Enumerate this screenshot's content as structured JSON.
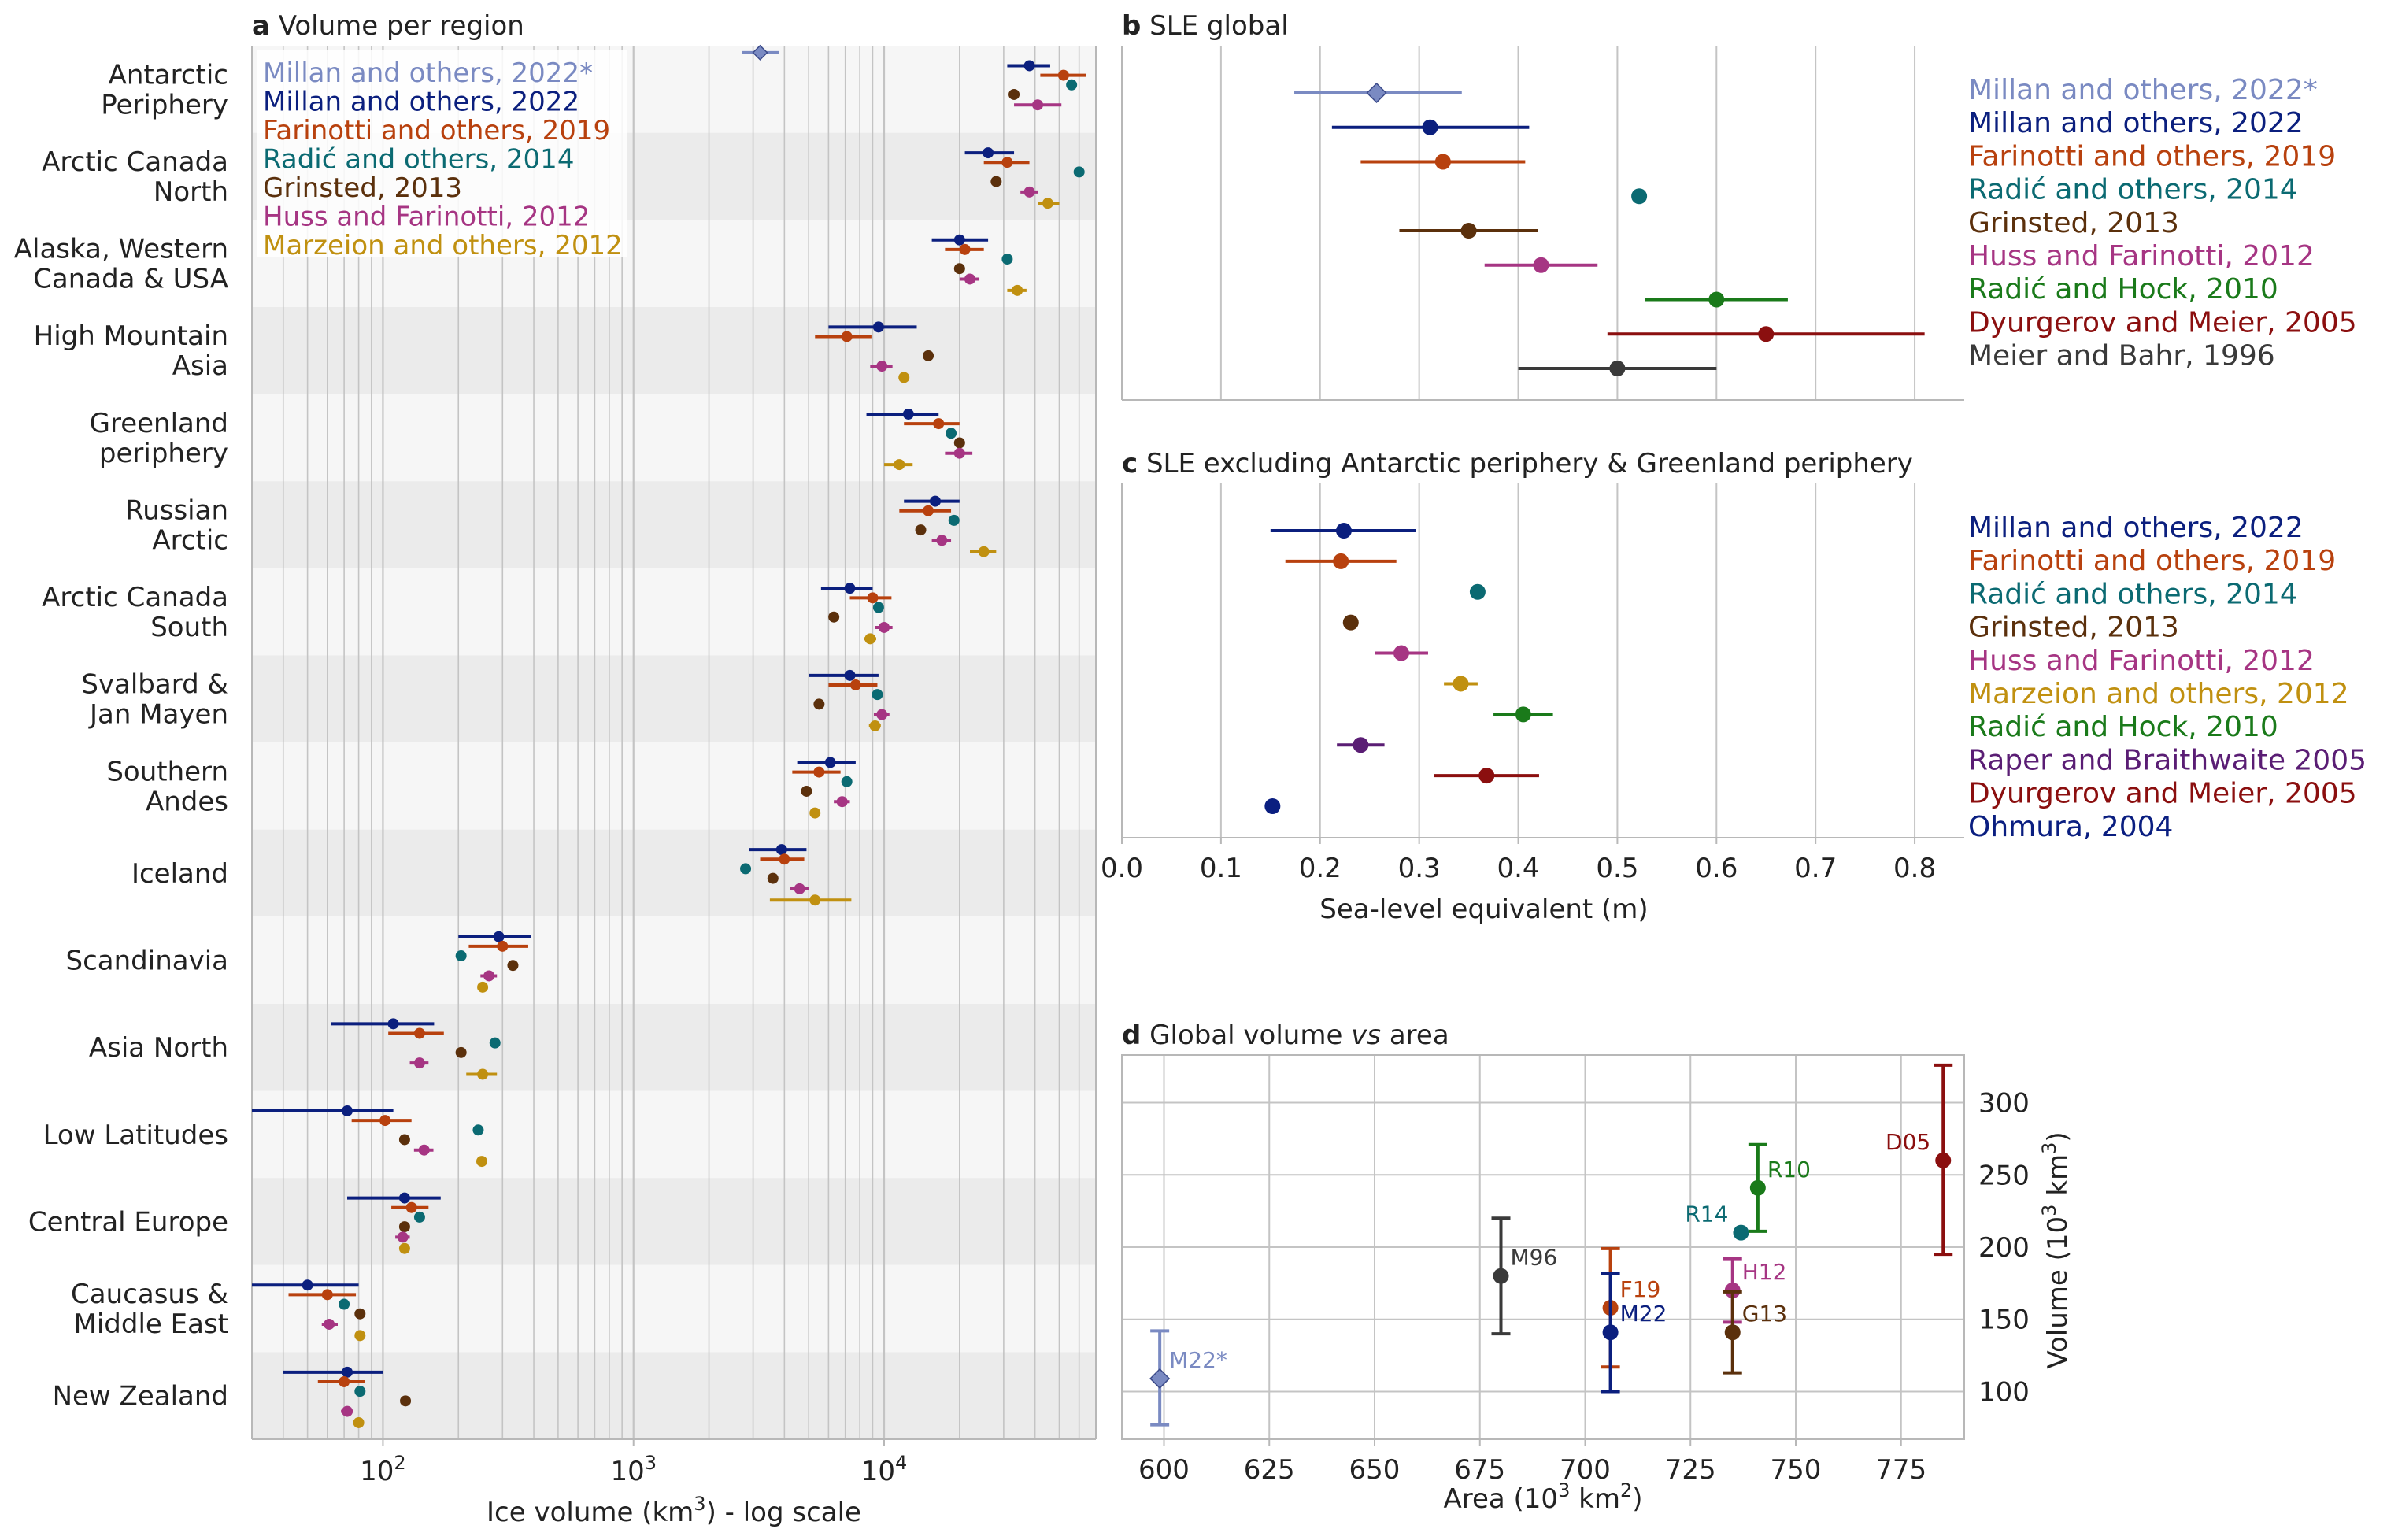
{
  "colors": {
    "M22s": "#7a8ac2",
    "M22": "#0b1f7e",
    "F19": "#b8410e",
    "R14": "#0b6a72",
    "G13": "#5b300c",
    "H12": "#a63583",
    "M12": "#c09010",
    "RH10": "#1a7a1a",
    "D05": "#8b0f0f",
    "MB96": "#3a3a3a",
    "RB05": "#5a1d74",
    "O04": "#0a1e80"
  },
  "chart_data": [
    {
      "id": "a",
      "type": "scatter",
      "panel_label": "a",
      "title": "Volume per region",
      "xlabel": "Ice volume (km",
      "xlabel_sup": "3",
      "xlabel_suffix": ") - log scale",
      "xscale": "log",
      "xlim": [
        30,
        70000
      ],
      "xticks": [
        {
          "value": 100,
          "base": "10",
          "exp": "2"
        },
        {
          "value": 1000,
          "base": "10",
          "exp": "3"
        },
        {
          "value": 10000,
          "base": "10",
          "exp": "4"
        }
      ],
      "grid": true,
      "legend_position": "top-left",
      "legend": [
        {
          "key": "M22s",
          "label": "Millan and others, 2022*"
        },
        {
          "key": "M22",
          "label": "Millan and others, 2022"
        },
        {
          "key": "F19",
          "label": "Farinotti and others, 2019"
        },
        {
          "key": "R14",
          "label": "Radić and others, 2014"
        },
        {
          "key": "G13",
          "label": "Grinsted, 2013"
        },
        {
          "key": "H12",
          "label": "Huss and Farinotti, 2012"
        },
        {
          "key": "M12",
          "label": "Marzeion and others, 2012"
        }
      ],
      "series_keys": [
        "M22s",
        "M22",
        "F19",
        "R14",
        "G13",
        "H12",
        "M12"
      ],
      "regions": [
        {
          "label": [
            "Antarctic",
            "Periphery"
          ],
          "points": {
            "M22s": [
              3200,
              2700,
              3800,
              "diamond"
            ],
            "M22": [
              38000,
              31000,
              46000
            ],
            "F19": [
              52000,
              42000,
              64000
            ],
            "R14": [
              56000
            ],
            "G13": [
              33000
            ],
            "H12": [
              41000,
              33000,
              51000
            ]
          }
        },
        {
          "label": [
            "Arctic Canada",
            "North"
          ],
          "points": {
            "M22": [
              26000,
              21000,
              33000
            ],
            "F19": [
              31000,
              25000,
              38000
            ],
            "R14": [
              60000
            ],
            "G13": [
              28000
            ],
            "H12": [
              38000,
              35000,
              41000
            ],
            "M12": [
              45000,
              41000,
              50000
            ]
          }
        },
        {
          "label": [
            "Alaska, Western",
            "Canada & USA"
          ],
          "points": {
            "M22": [
              20000,
              15500,
              26000
            ],
            "F19": [
              21000,
              17500,
              25000
            ],
            "R14": [
              31000
            ],
            "G13": [
              20000
            ],
            "H12": [
              22000,
              20000,
              24000
            ],
            "M12": [
              34000,
              31000,
              37000
            ]
          }
        },
        {
          "label": [
            "High Mountain",
            "Asia"
          ],
          "points": {
            "M22": [
              9500,
              6000,
              13500
            ],
            "F19": [
              7100,
              5300,
              8900
            ],
            "G13": [
              15000
            ],
            "H12": [
              9800,
              8800,
              10800
            ],
            "M12": [
              12000
            ]
          }
        },
        {
          "label": [
            "Greenland",
            "periphery"
          ],
          "points": {
            "M22": [
              12500,
              8500,
              16500
            ],
            "F19": [
              16500,
              12000,
              20000
            ],
            "R14": [
              18500
            ],
            "G13": [
              20000
            ],
            "H12": [
              20000,
              17500,
              22500
            ],
            "M12": [
              11500,
              10000,
              13000
            ]
          }
        },
        {
          "label": [
            "Russian",
            "Arctic"
          ],
          "points": {
            "M22": [
              16000,
              12000,
              20000
            ],
            "F19": [
              15000,
              11500,
              18500
            ],
            "R14": [
              19000
            ],
            "G13": [
              14000
            ],
            "H12": [
              17000,
              15500,
              18500
            ],
            "M12": [
              25000,
              22000,
              28000
            ]
          }
        },
        {
          "label": [
            "Arctic Canada",
            "South"
          ],
          "points": {
            "M22": [
              7300,
              5600,
              9000
            ],
            "F19": [
              9000,
              7300,
              10700
            ],
            "R14": [
              9500
            ],
            "G13": [
              6300
            ],
            "H12": [
              10000,
              9200,
              10800
            ],
            "M12": [
              8800,
              8300,
              9300
            ]
          }
        },
        {
          "label": [
            "Svalbard &",
            "Jan Mayen"
          ],
          "points": {
            "M22": [
              7300,
              5000,
              9500
            ],
            "F19": [
              7700,
              6000,
              9400
            ],
            "R14": [
              9400
            ],
            "G13": [
              5500
            ],
            "H12": [
              9800,
              9100,
              10500
            ],
            "M12": [
              9200,
              8700,
              9700
            ]
          }
        },
        {
          "label": [
            "Southern",
            "Andes"
          ],
          "points": {
            "M22": [
              6100,
              4500,
              7700
            ],
            "F19": [
              5500,
              4300,
              6700
            ],
            "R14": [
              7100
            ],
            "G13": [
              4900
            ],
            "H12": [
              6800,
              6300,
              7300
            ],
            "M12": [
              5300
            ]
          }
        },
        {
          "label": [
            "Iceland"
          ],
          "points": {
            "M22": [
              3900,
              2900,
              4900
            ],
            "F19": [
              4000,
              3200,
              4800
            ],
            "R14": [
              2800
            ],
            "G13": [
              3600
            ],
            "H12": [
              4600,
              4200,
              5000
            ],
            "M12": [
              5300,
              3500,
              7400
            ]
          }
        },
        {
          "label": [
            "Scandinavia"
          ],
          "points": {
            "M22": [
              290,
              200,
              390
            ],
            "F19": [
              300,
              220,
              380
            ],
            "R14": [
              205
            ],
            "G13": [
              330
            ],
            "H12": [
              265,
              245,
              285
            ],
            "M12": [
              250
            ]
          }
        },
        {
          "label": [
            "Asia North"
          ],
          "points": {
            "M22": [
              110,
              62,
              160
            ],
            "F19": [
              140,
              105,
              175
            ],
            "R14": [
              280
            ],
            "G13": [
              205
            ],
            "H12": [
              140,
              128,
              152
            ],
            "M12": [
              250,
              215,
              285
            ]
          }
        },
        {
          "label": [
            "Low Latitudes"
          ],
          "points": {
            "M22": [
              72,
              30,
              110
            ],
            "F19": [
              102,
              75,
              130
            ],
            "R14": [
              240
            ],
            "G13": [
              122
            ],
            "H12": [
              146,
              133,
              159
            ],
            "M12": [
              248
            ]
          }
        },
        {
          "label": [
            "Central Europe"
          ],
          "points": {
            "M22": [
              122,
              72,
              170
            ],
            "F19": [
              130,
              108,
              152
            ],
            "R14": [
              140
            ],
            "G13": [
              122
            ],
            "H12": [
              120,
              112,
              128
            ],
            "M12": [
              122
            ]
          }
        },
        {
          "label": [
            "Caucasus &",
            "Middle East"
          ],
          "points": {
            "M22": [
              50,
              30,
              80
            ],
            "F19": [
              60,
              42,
              78
            ],
            "R14": [
              70
            ],
            "G13": [
              81
            ],
            "H12": [
              61,
              57,
              66
            ],
            "M12": [
              81
            ]
          }
        },
        {
          "label": [
            "New Zealand"
          ],
          "points": {
            "M22": [
              72,
              40,
              100
            ],
            "F19": [
              70,
              55,
              85
            ],
            "R14": [
              81
            ],
            "G13": [
              123
            ],
            "H12": [
              72,
              68,
              76
            ],
            "M12": [
              80
            ]
          }
        }
      ]
    },
    {
      "id": "b",
      "type": "scatter",
      "panel_label": "b",
      "title": "SLE global",
      "xlim": [
        0,
        0.85
      ],
      "grid": true,
      "legend_position": "right",
      "series": [
        {
          "key": "M22s",
          "name": "Millan and others, 2022*",
          "value": 0.257,
          "err": [
            0.174,
            0.343
          ],
          "marker": "diamond"
        },
        {
          "key": "M22",
          "name": "Millan and others, 2022",
          "value": 0.311,
          "err": [
            0.212,
            0.411
          ]
        },
        {
          "key": "F19",
          "name": "Farinotti and others, 2019",
          "value": 0.324,
          "err": [
            0.241,
            0.407
          ]
        },
        {
          "key": "R14",
          "name": "Radić and others, 2014",
          "value": 0.522
        },
        {
          "key": "G13",
          "name": "Grinsted, 2013",
          "value": 0.35,
          "err": [
            0.28,
            0.42
          ]
        },
        {
          "key": "H12",
          "name": "Huss and Farinotti, 2012",
          "value": 0.423,
          "err": [
            0.366,
            0.48
          ]
        },
        {
          "key": "RH10",
          "name": "Radić and Hock, 2010",
          "value": 0.6,
          "err": [
            0.528,
            0.672
          ]
        },
        {
          "key": "D05",
          "name": "Dyurgerov and Meier, 2005",
          "value": 0.65,
          "err": [
            0.49,
            0.81
          ]
        },
        {
          "key": "MB96",
          "name": "Meier and Bahr, 1996",
          "value": 0.5,
          "err": [
            0.4,
            0.6
          ]
        }
      ]
    },
    {
      "id": "c",
      "type": "scatter",
      "panel_label": "c",
      "title": "SLE excluding Antarctic periphery & Greenland periphery",
      "xlabel": "Sea-level equivalent (m)",
      "xlim": [
        0,
        0.85
      ],
      "xticks": [
        "0.0",
        "0.1",
        "0.2",
        "0.3",
        "0.4",
        "0.5",
        "0.6",
        "0.7",
        "0.8"
      ],
      "grid": true,
      "legend_position": "right",
      "series": [
        {
          "key": "M22",
          "name": "Millan and others, 2022",
          "value": 0.224,
          "err": [
            0.15,
            0.297
          ]
        },
        {
          "key": "F19",
          "name": "Farinotti and others, 2019",
          "value": 0.221,
          "err": [
            0.165,
            0.277
          ]
        },
        {
          "key": "R14",
          "name": "Radić and others, 2014",
          "value": 0.359
        },
        {
          "key": "G13",
          "name": "Grinsted, 2013",
          "value": 0.231
        },
        {
          "key": "H12",
          "name": "Huss and Farinotti, 2012",
          "value": 0.282,
          "err": [
            0.255,
            0.309
          ]
        },
        {
          "key": "M12",
          "name": "Marzeion and others, 2012",
          "value": 0.342,
          "err": [
            0.325,
            0.359
          ]
        },
        {
          "key": "RH10",
          "name": "Radić and Hock, 2010",
          "value": 0.405,
          "err": [
            0.375,
            0.435
          ]
        },
        {
          "key": "RB05",
          "name": "Raper and Braithwaite 2005",
          "value": 0.241,
          "err": [
            0.217,
            0.265
          ]
        },
        {
          "key": "D05",
          "name": "Dyurgerov and Meier, 2005",
          "value": 0.368,
          "err": [
            0.315,
            0.421
          ]
        },
        {
          "key": "O04",
          "name": "Ohmura, 2004",
          "value": 0.152
        }
      ]
    },
    {
      "id": "d",
      "type": "scatter",
      "panel_label": "d",
      "title_prefix": "Global volume",
      "title_italic": "vs",
      "title_suffix": "area",
      "xlabel": "Area (10",
      "xlabel_sup": "3",
      "xlabel_suffix": " km",
      "xlabel_sup2": "2",
      "xlabel_end": ")",
      "ylabel": "Volume (10",
      "ylabel_sup": "3",
      "ylabel_suffix": " km",
      "ylabel_sup2": "3",
      "ylabel_end": ")",
      "xlim": [
        590,
        790
      ],
      "ylim": [
        67,
        333
      ],
      "xticks": [
        600,
        625,
        650,
        675,
        700,
        725,
        750,
        775
      ],
      "yticks": [
        100,
        150,
        200,
        250,
        300
      ],
      "grid": true,
      "points": [
        {
          "key": "M22s",
          "label": "M22*",
          "area": 599,
          "volume": 109,
          "err": [
            77,
            142
          ],
          "marker": "diamond",
          "label_side": "right"
        },
        {
          "key": "MB96",
          "label": "M96",
          "area": 680,
          "volume": 180,
          "err": [
            140,
            220
          ],
          "label_side": "right"
        },
        {
          "key": "F19",
          "label": "F19",
          "area": 706,
          "volume": 158,
          "err": [
            117,
            199
          ],
          "label_side": "right"
        },
        {
          "key": "M22",
          "label": "M22",
          "area": 706,
          "volume": 141,
          "err": [
            100,
            182
          ],
          "label_side": "right"
        },
        {
          "key": "R14",
          "label": "R14",
          "area": 737,
          "volume": 210,
          "label_side": "left"
        },
        {
          "key": "H12",
          "label": "H12",
          "area": 735,
          "volume": 170,
          "err": [
            148,
            192
          ],
          "label_side": "right"
        },
        {
          "key": "G13",
          "label": "G13",
          "area": 735,
          "volume": 141,
          "err": [
            113,
            169
          ],
          "label_side": "right"
        },
        {
          "key": "RH10",
          "label": "R10",
          "area": 741,
          "volume": 241,
          "err": [
            211,
            271
          ],
          "label_side": "right"
        },
        {
          "key": "D05",
          "label": "D05",
          "area": 785,
          "volume": 260,
          "err": [
            195,
            326
          ],
          "label_side": "left"
        }
      ]
    }
  ]
}
